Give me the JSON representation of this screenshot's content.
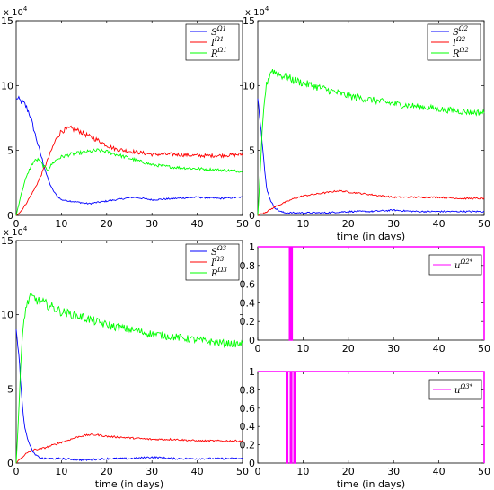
{
  "chart_data": [
    {
      "type": "line",
      "xlabel": "",
      "exponent": "x 10",
      "exponent_power": "4",
      "xlim": [
        0,
        50
      ],
      "ylim": [
        0,
        15
      ],
      "xticks": [
        "0",
        "10",
        "20",
        "30",
        "40",
        "50"
      ],
      "yticks": [
        "0",
        "5",
        "10",
        "15"
      ],
      "legend_position": "top-right",
      "series": [
        {
          "name": "S",
          "sup": "Ω1",
          "color": "#0000ff",
          "x": [
            0,
            1,
            2,
            3,
            4,
            5,
            6,
            7,
            8,
            9,
            10,
            12,
            14,
            16,
            18,
            20,
            22,
            24,
            26,
            28,
            30,
            35,
            40,
            45,
            50
          ],
          "y": [
            9.0,
            8.8,
            8.5,
            7.8,
            6.5,
            5.2,
            4.0,
            2.8,
            2.0,
            1.5,
            1.2,
            1.1,
            1.0,
            0.9,
            1.0,
            1.1,
            1.2,
            1.3,
            1.4,
            1.3,
            1.2,
            1.3,
            1.4,
            1.3,
            1.4
          ]
        },
        {
          "name": "I",
          "sup": "Ω1",
          "color": "#ff0000",
          "x": [
            0,
            1,
            2,
            3,
            4,
            5,
            6,
            7,
            8,
            9,
            10,
            12,
            14,
            16,
            18,
            20,
            22,
            24,
            26,
            28,
            30,
            35,
            40,
            45,
            50
          ],
          "y": [
            0.0,
            0.3,
            0.8,
            1.4,
            2.0,
            2.7,
            3.5,
            4.3,
            5.2,
            6.0,
            6.5,
            6.7,
            6.5,
            6.1,
            5.8,
            5.4,
            5.1,
            5.0,
            4.9,
            4.8,
            4.7,
            4.7,
            4.6,
            4.6,
            4.7
          ]
        },
        {
          "name": "R",
          "sup": "Ω1",
          "color": "#00ff00",
          "x": [
            0,
            1,
            2,
            3,
            4,
            5,
            6,
            7,
            8,
            9,
            10,
            12,
            14,
            16,
            18,
            20,
            22,
            24,
            26,
            28,
            30,
            35,
            40,
            45,
            50
          ],
          "y": [
            0.0,
            1.5,
            2.7,
            3.6,
            4.2,
            4.3,
            3.8,
            3.5,
            4.0,
            4.3,
            4.5,
            4.7,
            4.8,
            4.9,
            5.0,
            4.9,
            4.7,
            4.5,
            4.3,
            4.1,
            3.9,
            3.7,
            3.6,
            3.5,
            3.4
          ]
        }
      ]
    },
    {
      "type": "line",
      "xlabel": "time (in days)",
      "exponent": "x 10",
      "exponent_power": "4",
      "xlim": [
        0,
        50
      ],
      "ylim": [
        0,
        15
      ],
      "xticks": [
        "0",
        "10",
        "20",
        "30",
        "40",
        "50"
      ],
      "yticks": [
        "0",
        "5",
        "10",
        "15"
      ],
      "legend_position": "top-right",
      "series": [
        {
          "name": "S",
          "sup": "Ω2",
          "color": "#0000ff",
          "x": [
            0,
            0.5,
            1,
            1.5,
            2,
            3,
            4,
            5,
            6,
            8,
            10,
            15,
            20,
            25,
            30,
            35,
            40,
            45,
            50
          ],
          "y": [
            9.0,
            7.5,
            5.5,
            3.5,
            2.0,
            1.0,
            0.5,
            0.3,
            0.2,
            0.2,
            0.2,
            0.2,
            0.3,
            0.3,
            0.4,
            0.3,
            0.3,
            0.3,
            0.3
          ]
        },
        {
          "name": "I",
          "sup": "Ω2",
          "color": "#ff0000",
          "x": [
            0,
            2,
            4,
            6,
            8,
            10,
            12,
            14,
            16,
            18,
            20,
            25,
            30,
            35,
            40,
            45,
            50
          ],
          "y": [
            0.0,
            0.3,
            0.7,
            1.0,
            1.3,
            1.5,
            1.6,
            1.7,
            1.8,
            1.9,
            1.8,
            1.6,
            1.4,
            1.4,
            1.4,
            1.3,
            1.3
          ]
        },
        {
          "name": "R",
          "sup": "Ω2",
          "color": "#00ff00",
          "x": [
            0,
            0.5,
            1,
            1.5,
            2,
            3,
            4,
            5,
            6,
            8,
            10,
            15,
            20,
            25,
            30,
            35,
            40,
            45,
            50
          ],
          "y": [
            0.0,
            3.0,
            6.5,
            9.0,
            10.2,
            11.2,
            11.0,
            10.8,
            10.7,
            10.4,
            10.2,
            9.7,
            9.2,
            8.9,
            8.6,
            8.4,
            8.2,
            8.0,
            7.9
          ]
        }
      ]
    },
    {
      "type": "line",
      "xlabel": "time (in days)",
      "exponent": "x 10",
      "exponent_power": "4",
      "xlim": [
        0,
        50
      ],
      "ylim": [
        0,
        15
      ],
      "xticks": [
        "0",
        "10",
        "20",
        "30",
        "40",
        "50"
      ],
      "yticks": [
        "0",
        "5",
        "10",
        "15"
      ],
      "legend_position": "top-right",
      "series": [
        {
          "name": "S",
          "sup": "Ω3",
          "color": "#0000ff",
          "x": [
            0,
            0.5,
            1,
            1.5,
            2,
            3,
            4,
            5,
            6,
            8,
            10,
            15,
            20,
            25,
            30,
            35,
            40,
            45,
            50
          ],
          "y": [
            9.0,
            7.5,
            5.5,
            3.5,
            2.2,
            1.2,
            0.6,
            0.4,
            0.3,
            0.3,
            0.3,
            0.2,
            0.3,
            0.3,
            0.4,
            0.3,
            0.3,
            0.3,
            0.3
          ]
        },
        {
          "name": "I",
          "sup": "Ω3",
          "color": "#ff0000",
          "x": [
            0,
            2,
            4,
            6,
            8,
            10,
            12,
            14,
            16,
            18,
            20,
            25,
            30,
            35,
            40,
            45,
            50
          ],
          "y": [
            0.0,
            0.6,
            0.9,
            1.0,
            1.2,
            1.4,
            1.6,
            1.8,
            1.9,
            1.9,
            1.8,
            1.7,
            1.6,
            1.6,
            1.5,
            1.5,
            1.5
          ]
        },
        {
          "name": "R",
          "sup": "Ω3",
          "color": "#00ff00",
          "x": [
            0,
            0.5,
            1,
            1.5,
            2,
            3,
            4,
            5,
            6,
            8,
            10,
            15,
            20,
            25,
            30,
            35,
            40,
            45,
            50
          ],
          "y": [
            0.0,
            3.0,
            6.5,
            9.0,
            10.3,
            11.2,
            11.1,
            10.9,
            10.8,
            10.5,
            10.2,
            9.8,
            9.3,
            9.0,
            8.7,
            8.5,
            8.3,
            8.1,
            8.0
          ]
        }
      ]
    },
    {
      "type": "line",
      "xlabel": "",
      "xlim": [
        0,
        50
      ],
      "ylim": [
        0,
        1
      ],
      "xticks": [
        "0",
        "10",
        "20",
        "30",
        "40",
        "50"
      ],
      "yticks": [
        "0",
        "0.2",
        "0.4",
        "0.6",
        "0.8",
        "1"
      ],
      "legend_position": "right",
      "series": [
        {
          "name": "u",
          "sup": "Ω2",
          "star": "*",
          "color": "#ff00ff",
          "x": [
            0,
            7.0,
            7.0,
            7.2,
            7.2,
            7.4,
            7.4,
            7.6,
            7.6,
            7.8,
            7.8,
            50,
            50
          ],
          "y": [
            1,
            1,
            0,
            0,
            1,
            1,
            0,
            0,
            1,
            1,
            1,
            1,
            0
          ]
        }
      ]
    },
    {
      "type": "line",
      "xlabel": "time (in days)",
      "xlim": [
        0,
        50
      ],
      "ylim": [
        0,
        1
      ],
      "xticks": [
        "0",
        "10",
        "20",
        "30",
        "40",
        "50"
      ],
      "yticks": [
        "0",
        "0.2",
        "0.4",
        "0.6",
        "0.8",
        "1"
      ],
      "legend_position": "right",
      "series": [
        {
          "name": "u",
          "sup": "Ω3",
          "star": "*",
          "color": "#ff00ff",
          "x": [
            0,
            6.3,
            6.3,
            6.6,
            6.6,
            7.2,
            7.2,
            7.5,
            7.5,
            8.0,
            8.0,
            8.3,
            8.3,
            50,
            50
          ],
          "y": [
            1,
            1,
            0,
            0,
            1,
            1,
            0,
            0,
            1,
            1,
            0,
            0,
            1,
            1,
            0
          ]
        }
      ]
    }
  ]
}
